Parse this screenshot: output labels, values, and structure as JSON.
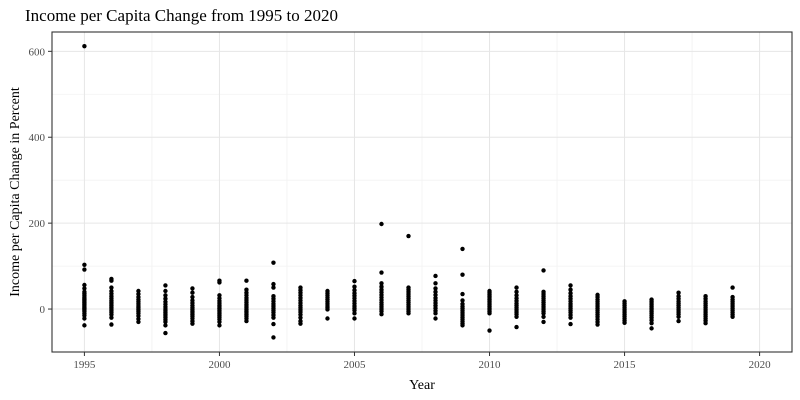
{
  "chart_data": {
    "type": "scatter",
    "title": "Income per Capita Change from 1995 to 2020",
    "xlabel": "Year",
    "ylabel": "Income per Capita Change in Percent",
    "xlim": [
      1993.8,
      2021.2
    ],
    "ylim": [
      -100,
      645
    ],
    "x_ticks": [
      1995,
      2000,
      2005,
      2010,
      2015,
      2020
    ],
    "x_tick_labels": [
      "1995",
      "2000",
      "2005",
      "2010",
      "2015",
      "2020"
    ],
    "y_ticks": [
      0,
      200,
      400,
      600
    ],
    "y_tick_labels": [
      "0",
      "200",
      "400",
      "600"
    ],
    "grid": true,
    "legend": "none",
    "series": [
      {
        "points": [
          {
            "year": 1995,
            "values": [
              612,
              103,
              92,
              56,
              48,
              40,
              36,
              32,
              28,
              25,
              22,
              19,
              16,
              13,
              10,
              7,
              4,
              1,
              -2,
              -5,
              -10,
              -15,
              -22,
              -38
            ]
          },
          {
            "year": 1996,
            "values": [
              70,
              66,
              50,
              42,
              36,
              30,
              25,
              20,
              16,
              12,
              8,
              4,
              0,
              -4,
              -8,
              -13,
              -20,
              -36
            ]
          },
          {
            "year": 1997,
            "values": [
              42,
              35,
              28,
              22,
              17,
              12,
              7,
              3,
              -1,
              -5,
              -10,
              -16,
              -23,
              -30
            ]
          },
          {
            "year": 1998,
            "values": [
              55,
              42,
              32,
              24,
              17,
              11,
              5,
              0,
              -4,
              -8,
              -12,
              -16,
              -20,
              -25,
              -30,
              -38,
              -56
            ]
          },
          {
            "year": 1999,
            "values": [
              48,
              38,
              28,
              20,
              14,
              8,
              3,
              -1,
              -5,
              -9,
              -13,
              -17,
              -22,
              -28,
              -34
            ]
          },
          {
            "year": 2000,
            "values": [
              66,
              62,
              32,
              25,
              19,
              14,
              9,
              5,
              1,
              -3,
              -7,
              -11,
              -15,
              -19,
              -24,
              -30,
              -38
            ]
          },
          {
            "year": 2001,
            "values": [
              66,
              45,
              38,
              32,
              26,
              21,
              16,
              11,
              7,
              3,
              -1,
              -5,
              -9,
              -13,
              -17,
              -22,
              -28
            ]
          },
          {
            "year": 2002,
            "values": [
              108,
              58,
              50,
              30,
              24,
              18,
              12,
              7,
              2,
              -3,
              -8,
              -14,
              -20,
              -35,
              -66
            ]
          },
          {
            "year": 2003,
            "values": [
              50,
              44,
              38,
              32,
              26,
              20,
              14,
              8,
              3,
              -2,
              -7,
              -13,
              -20,
              -28,
              -34
            ]
          },
          {
            "year": 2004,
            "values": [
              42,
              37,
              32,
              27,
              22,
              17,
              12,
              7,
              3,
              -1,
              -22
            ]
          },
          {
            "year": 2005,
            "values": [
              65,
              52,
              44,
              37,
              31,
              25,
              19,
              13,
              7,
              2,
              -3,
              -10,
              -22
            ]
          },
          {
            "year": 2006,
            "values": [
              198,
              85,
              60,
              52,
              45,
              39,
              33,
              27,
              21,
              15,
              10,
              5,
              0,
              -5,
              -12
            ]
          },
          {
            "year": 2007,
            "values": [
              170,
              50,
              45,
              40,
              35,
              30,
              25,
              20,
              15,
              10,
              5,
              0,
              -5,
              -10
            ]
          },
          {
            "year": 2008,
            "values": [
              77,
              60,
              48,
              40,
              33,
              26,
              20,
              14,
              8,
              2,
              -4,
              -10,
              -22
            ]
          },
          {
            "year": 2009,
            "values": [
              140,
              80,
              35,
              20,
              12,
              6,
              1,
              -4,
              -9,
              -14,
              -19,
              -24,
              -29,
              -34,
              -38
            ]
          },
          {
            "year": 2010,
            "values": [
              42,
              38,
              34,
              30,
              26,
              22,
              18,
              14,
              10,
              6,
              2,
              -2,
              -6,
              -10,
              -50
            ]
          },
          {
            "year": 2011,
            "values": [
              50,
              40,
              32,
              25,
              19,
              13,
              8,
              3,
              -2,
              -7,
              -12,
              -18,
              -42
            ]
          },
          {
            "year": 2012,
            "values": [
              90,
              40,
              35,
              30,
              25,
              20,
              15,
              10,
              5,
              0,
              -5,
              -10,
              -18,
              -30
            ]
          },
          {
            "year": 2013,
            "values": [
              55,
              45,
              37,
              30,
              24,
              18,
              12,
              7,
              2,
              -3,
              -8,
              -14,
              -20,
              -35
            ]
          },
          {
            "year": 2014,
            "values": [
              33,
              28,
              22,
              17,
              12,
              7,
              2,
              -3,
              -8,
              -13,
              -18,
              -24,
              -30,
              -36
            ]
          },
          {
            "year": 2015,
            "values": [
              18,
              13,
              8,
              3,
              -2,
              -7,
              -12,
              -17,
              -22,
              -27,
              -32
            ]
          },
          {
            "year": 2016,
            "values": [
              22,
              18,
              14,
              10,
              6,
              2,
              -2,
              -6,
              -10,
              -15,
              -20,
              -26,
              -33,
              -45
            ]
          },
          {
            "year": 2017,
            "values": [
              38,
              30,
              24,
              18,
              13,
              8,
              3,
              -2,
              -7,
              -12,
              -18,
              -28
            ]
          },
          {
            "year": 2018,
            "values": [
              30,
              24,
              18,
              13,
              8,
              3,
              -2,
              -7,
              -12,
              -17,
              -22,
              -27,
              -33
            ]
          },
          {
            "year": 2019,
            "values": [
              50,
              28,
              22,
              17,
              12,
              7,
              2,
              -3,
              -8,
              -13,
              -18
            ]
          }
        ]
      }
    ]
  }
}
